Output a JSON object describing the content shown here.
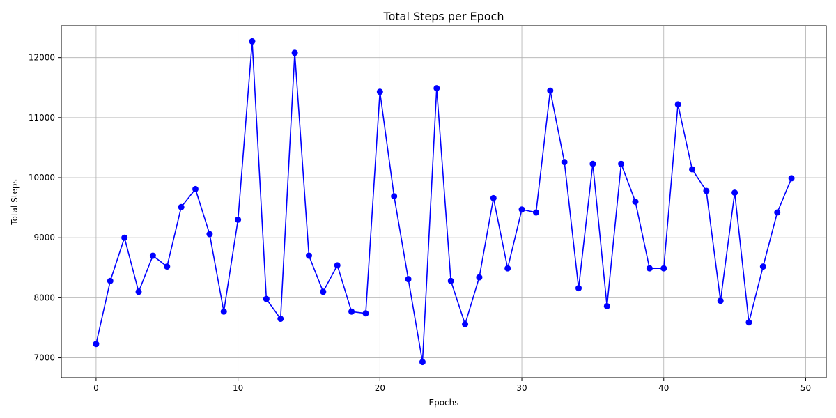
{
  "chart_data": {
    "type": "line",
    "title": "Total Steps per Epoch",
    "xlabel": "Epochs",
    "ylabel": "Total Steps",
    "xlim": [
      -2.45,
      51.45
    ],
    "ylim": [
      6670,
      12530
    ],
    "x_ticks": [
      0,
      10,
      20,
      30,
      40,
      50
    ],
    "y_ticks": [
      7000,
      8000,
      9000,
      10000,
      11000,
      12000
    ],
    "grid": true,
    "line_color": "#0000ff",
    "marker": "circle",
    "series": [
      {
        "x": [
          0,
          1,
          2,
          3,
          4,
          5,
          6,
          7,
          8,
          9,
          10,
          11,
          12,
          13,
          14,
          15,
          16,
          17,
          18,
          19,
          20,
          21,
          22,
          23,
          24,
          25,
          26,
          27,
          28,
          29,
          30,
          31,
          32,
          33,
          34,
          35,
          36,
          37,
          38,
          39,
          40,
          41,
          42,
          43,
          44,
          45,
          46,
          47,
          48,
          49
        ],
        "values": [
          7230,
          8280,
          9000,
          8100,
          8700,
          8520,
          9510,
          9810,
          9060,
          7770,
          9300,
          12270,
          7980,
          7650,
          12080,
          8700,
          8100,
          8540,
          7770,
          7740,
          11430,
          9690,
          8310,
          6930,
          11490,
          8280,
          7560,
          8340,
          9660,
          8490,
          9470,
          9420,
          11450,
          10260,
          8160,
          10230,
          7860,
          10230,
          9600,
          8490,
          8490,
          11220,
          10140,
          9780,
          7950,
          9750,
          7590,
          8520,
          9420,
          9990
        ]
      }
    ]
  }
}
